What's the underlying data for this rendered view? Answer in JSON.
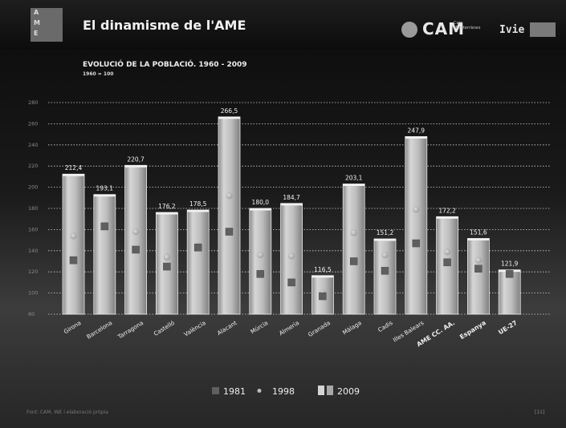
{
  "header": {
    "logo_letters": [
      "A",
      "M",
      "E"
    ],
    "title": "El dinamisme de l'AME",
    "cam_logo": "CAM",
    "cam_subtitle": "Caja Mediterráneo",
    "ivie_logo": "Ivie"
  },
  "chart_data": {
    "type": "bar",
    "title": "EVOLUCIÓ DE LA POBLACIÓ. 1960 - 2009",
    "subtitle": "1960 = 100",
    "categories": [
      "Girona",
      "Barcelona",
      "Tarragona",
      "Castelló",
      "València",
      "Alacant",
      "Múrcia",
      "Almeria",
      "Granada",
      "Màlaga",
      "Cadis",
      "Illes Balears",
      "AME CC. AA.",
      "Espanya",
      "UE-27"
    ],
    "bold_categories": [
      "AME CC. AA.",
      "Espanya",
      "UE-27"
    ],
    "series": [
      {
        "name": "1981",
        "marker": "square",
        "color": "#5f5f5f",
        "values": [
          131,
          163,
          141,
          125,
          143,
          158,
          118,
          110,
          97,
          130,
          121,
          147,
          129,
          123,
          118
        ]
      },
      {
        "name": "1998",
        "marker": "dot",
        "color": "#a8a8a8",
        "values": [
          154,
          164,
          158,
          134,
          145,
          192,
          136,
          135,
          100,
          157,
          136,
          179,
          139,
          131,
          119
        ]
      },
      {
        "name": "2009",
        "marker": "bar",
        "color": "#c9c9c9",
        "values": [
          212.4,
          193.1,
          220.7,
          176.2,
          178.5,
          266.5,
          180.0,
          184.7,
          116.5,
          203.1,
          151.2,
          247.9,
          172.2,
          151.6,
          121.9
        ],
        "labels": [
          "212,4",
          "193,1",
          "220,7",
          "176,2",
          "178,5",
          "266,5",
          "180,0",
          "184,7",
          "116,5",
          "203,1",
          "151,2",
          "247,9",
          "172,2",
          "151,6",
          "121,9"
        ]
      }
    ],
    "yticks": [
      80,
      100,
      120,
      140,
      160,
      180,
      200,
      220,
      240,
      260,
      280
    ],
    "ylim": [
      80,
      280
    ],
    "grid": true,
    "legend_position": "bottom"
  },
  "footer": {
    "source": "Font: CAM, INE i elaboració pròpia",
    "page": "[11]"
  },
  "colors": {
    "background_top": "#0b0b0b",
    "background_bottom": "#3c3c3c",
    "bar_fill": "#c9c9c9",
    "marker_1981": "#5f5f5f",
    "marker_1998": "#a8a8a8"
  }
}
